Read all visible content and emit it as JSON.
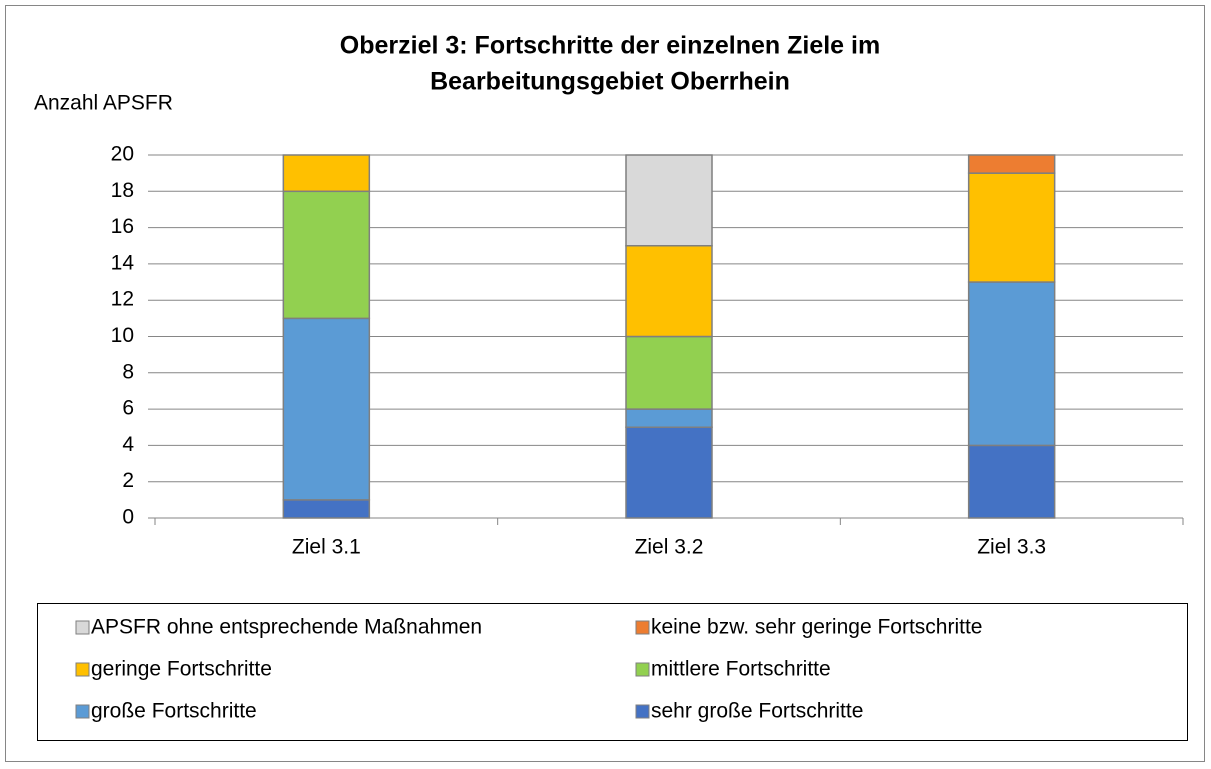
{
  "chart_data": {
    "type": "stacked_bar",
    "title": [
      "Oberziel 3: Fortschritte der einzelnen Ziele im",
      "Bearbeitungsgebiet Oberrhein"
    ],
    "y_label": "Anzahl APSFR",
    "categories": [
      "Ziel 3.1",
      "Ziel 3.2",
      "Ziel 3.3"
    ],
    "series": [
      {
        "name": "sehr große Fortschritte",
        "color": "#4472c4",
        "values": [
          1,
          5,
          4
        ]
      },
      {
        "name": "große Fortschritte",
        "color": "#5b9bd5",
        "values": [
          10,
          1,
          9
        ]
      },
      {
        "name": "mittlere Fortschritte",
        "color": "#92d050",
        "values": [
          7,
          4,
          0
        ]
      },
      {
        "name": "geringe Fortschritte",
        "color": "#ffc000",
        "values": [
          2,
          5,
          6
        ]
      },
      {
        "name": "keine bzw. sehr geringe Fortschritte",
        "color": "#ed7d31",
        "values": [
          0,
          0,
          1
        ]
      },
      {
        "name": "APSFR ohne entsprechende Maßnahmen",
        "color": "#d9d9d9",
        "values": [
          0,
          5,
          0
        ]
      }
    ],
    "ylim": [
      0,
      20
    ],
    "yticks": [
      0,
      2,
      4,
      6,
      8,
      10,
      12,
      14,
      16,
      18,
      20
    ],
    "grid": true,
    "legend": "bottom"
  }
}
